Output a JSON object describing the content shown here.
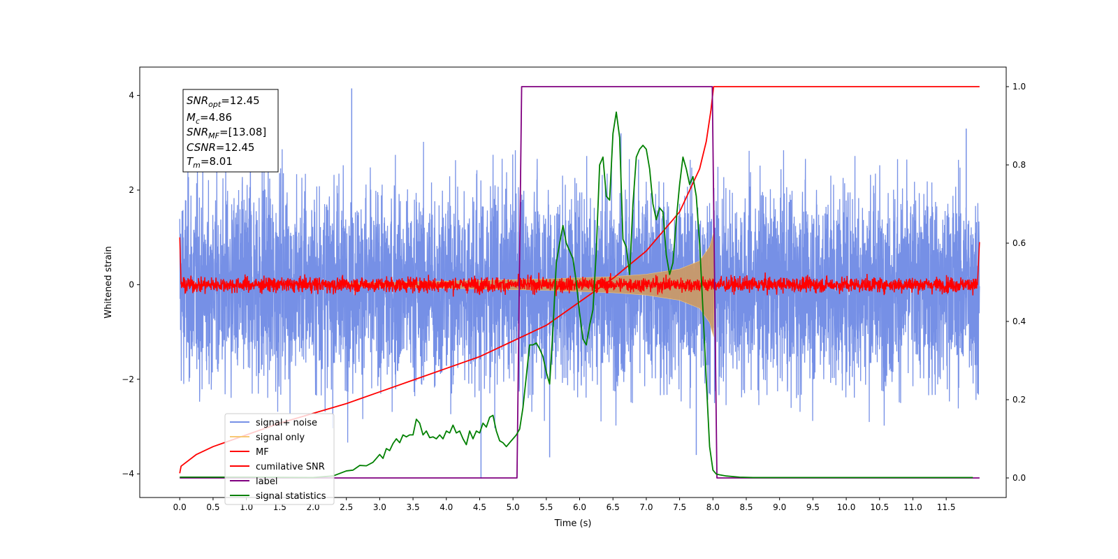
{
  "chart_data": {
    "type": "line",
    "xlabel": "Time (s)",
    "ylabel": "Whitened strain",
    "xlim": [
      -0.6,
      12.4
    ],
    "ylim": [
      -4.5,
      4.6
    ],
    "y2lim": [
      -0.05,
      1.05
    ],
    "x_ticks": [
      0.0,
      0.5,
      1.0,
      1.5,
      2.0,
      2.5,
      3.0,
      3.5,
      4.0,
      4.5,
      5.0,
      5.5,
      6.0,
      6.5,
      7.0,
      7.5,
      8.0,
      8.5,
      9.0,
      9.5,
      10.0,
      10.5,
      11.0,
      11.5
    ],
    "x_tick_labels": [
      "0.0",
      "0.5",
      "1.0",
      "1.5",
      "2.0",
      "2.5",
      "3.0",
      "3.5",
      "4.0",
      "4.5",
      "5.0",
      "5.5",
      "6.0",
      "6.5",
      "7.0",
      "7.5",
      "8.0",
      "8.5",
      "9.0",
      "9.5",
      "10.0",
      "10.5",
      "11.0",
      "11.5"
    ],
    "y_ticks": [
      -4,
      -2,
      0,
      2,
      4
    ],
    "y_tick_labels": [
      "−4",
      "−2",
      "0",
      "2",
      "4"
    ],
    "y2_ticks": [
      0.0,
      0.2,
      0.4,
      0.6,
      0.8,
      1.0
    ],
    "y2_tick_labels": [
      "0.0",
      "0.2",
      "0.4",
      "0.6",
      "0.8",
      "1.0"
    ],
    "grid": false,
    "legend_position": "lower-left",
    "annotation": {
      "position": "top-left",
      "lines": [
        {
          "base": "SNR",
          "sub": "opt",
          "value": "=12.45"
        },
        {
          "base": "M",
          "sub": "c",
          "value": "=4.86"
        },
        {
          "base": "SNR",
          "sub": "MF",
          "value": "=[13.08]"
        },
        {
          "base": "CSNR",
          "sub": "",
          "value": "=12.45"
        },
        {
          "base": "T",
          "sub": "m",
          "value": "=8.01"
        }
      ]
    },
    "series": [
      {
        "name": "signal+ noise",
        "axis": "left",
        "color": "#7690e6",
        "kind": "noise_band",
        "x_range": [
          0.0,
          12.0
        ],
        "std": 0.95,
        "spikes": [
          [
            2.58,
            4.15
          ],
          [
            4.52,
            -4.1
          ],
          [
            1.06,
            2.95
          ],
          [
            5.55,
            -3.65
          ],
          [
            7.75,
            -3.6
          ],
          [
            6.62,
            3.2
          ],
          [
            11.8,
            3.3
          ]
        ],
        "envelope": [
          [
            0.0,
            2.6
          ],
          [
            1.0,
            2.8
          ],
          [
            2.6,
            4.15
          ],
          [
            4.5,
            3.2
          ],
          [
            6.6,
            3.3
          ],
          [
            8.0,
            3.5
          ],
          [
            10.0,
            3.3
          ],
          [
            11.8,
            3.3
          ],
          [
            12.0,
            2.8
          ]
        ]
      },
      {
        "name": "signal only",
        "axis": "left",
        "color": "#f7c873",
        "kind": "chirp_envelope",
        "amplitude_vs_time": [
          [
            2.5,
            0.03
          ],
          [
            3.5,
            0.06
          ],
          [
            4.5,
            0.09
          ],
          [
            5.5,
            0.12
          ],
          [
            6.5,
            0.17
          ],
          [
            7.0,
            0.22
          ],
          [
            7.5,
            0.33
          ],
          [
            7.8,
            0.5
          ],
          [
            7.95,
            0.8
          ],
          [
            8.01,
            1.1
          ],
          [
            8.02,
            0.0
          ]
        ]
      },
      {
        "name": "MF",
        "axis": "left",
        "color": "#ff0000",
        "kind": "matched_filter",
        "x_range": [
          0.0,
          12.0
        ],
        "noise_amplitude": 0.1,
        "edges": [
          [
            0.0,
            1.0
          ],
          [
            0.02,
            0.05
          ],
          [
            11.97,
            0.05
          ],
          [
            12.0,
            0.9
          ]
        ]
      },
      {
        "name": "cumilative SNR",
        "axis": "right",
        "color": "#ff0000",
        "x": [
          0.0,
          0.02,
          0.25,
          0.5,
          1.0,
          1.5,
          2.0,
          2.5,
          3.0,
          3.5,
          4.0,
          4.5,
          5.0,
          5.5,
          6.0,
          6.5,
          7.0,
          7.5,
          7.8,
          7.9,
          7.97,
          8.01,
          8.02,
          12.0
        ],
        "values": [
          0.012,
          0.03,
          0.06,
          0.08,
          0.11,
          0.14,
          0.165,
          0.19,
          0.22,
          0.25,
          0.28,
          0.31,
          0.35,
          0.39,
          0.45,
          0.51,
          0.58,
          0.68,
          0.79,
          0.86,
          0.94,
          1.0,
          1.0,
          1.0
        ]
      },
      {
        "name": "label",
        "axis": "right",
        "color": "#800080",
        "x": [
          0.0,
          5.06,
          5.13,
          7.99,
          8.06,
          12.0
        ],
        "values": [
          0.0,
          0.0,
          1.0,
          1.0,
          0.0,
          0.0
        ]
      },
      {
        "name": "signal statistics",
        "axis": "right",
        "color": "#008000",
        "x": [
          0.0,
          1.0,
          2.0,
          2.3,
          2.5,
          2.6,
          2.7,
          2.8,
          2.9,
          3.0,
          3.05,
          3.1,
          3.15,
          3.2,
          3.25,
          3.3,
          3.35,
          3.4,
          3.45,
          3.5,
          3.55,
          3.6,
          3.65,
          3.7,
          3.75,
          3.8,
          3.85,
          3.9,
          3.95,
          4.0,
          4.05,
          4.1,
          4.15,
          4.2,
          4.25,
          4.3,
          4.35,
          4.4,
          4.45,
          4.5,
          4.55,
          4.6,
          4.65,
          4.7,
          4.75,
          4.8,
          4.85,
          4.9,
          4.95,
          5.0,
          5.05,
          5.1,
          5.15,
          5.2,
          5.25,
          5.3,
          5.35,
          5.4,
          5.45,
          5.5,
          5.55,
          5.6,
          5.65,
          5.7,
          5.75,
          5.8,
          5.85,
          5.9,
          5.95,
          6.0,
          6.05,
          6.1,
          6.15,
          6.2,
          6.25,
          6.3,
          6.35,
          6.4,
          6.45,
          6.5,
          6.55,
          6.6,
          6.65,
          6.7,
          6.75,
          6.8,
          6.85,
          6.9,
          6.95,
          7.0,
          7.05,
          7.1,
          7.15,
          7.2,
          7.25,
          7.3,
          7.35,
          7.4,
          7.45,
          7.5,
          7.55,
          7.6,
          7.65,
          7.7,
          7.75,
          7.8,
          7.85,
          7.9,
          7.95,
          8.0,
          8.05,
          8.1,
          8.2,
          8.4,
          8.6,
          9.0,
          10.0,
          11.0,
          11.9
        ],
        "values": [
          0.002,
          0.002,
          0.001,
          0.005,
          0.018,
          0.02,
          0.032,
          0.031,
          0.04,
          0.06,
          0.05,
          0.075,
          0.07,
          0.088,
          0.1,
          0.09,
          0.11,
          0.105,
          0.11,
          0.11,
          0.15,
          0.14,
          0.11,
          0.12,
          0.103,
          0.105,
          0.1,
          0.11,
          0.1,
          0.12,
          0.115,
          0.135,
          0.115,
          0.12,
          0.1,
          0.085,
          0.12,
          0.1,
          0.12,
          0.115,
          0.14,
          0.13,
          0.155,
          0.16,
          0.12,
          0.095,
          0.09,
          0.08,
          0.09,
          0.1,
          0.11,
          0.125,
          0.18,
          0.26,
          0.34,
          0.34,
          0.345,
          0.33,
          0.31,
          0.27,
          0.24,
          0.38,
          0.55,
          0.6,
          0.645,
          0.6,
          0.58,
          0.56,
          0.5,
          0.42,
          0.355,
          0.34,
          0.39,
          0.43,
          0.58,
          0.8,
          0.82,
          0.72,
          0.71,
          0.88,
          0.935,
          0.87,
          0.61,
          0.59,
          0.52,
          0.7,
          0.82,
          0.84,
          0.85,
          0.84,
          0.79,
          0.7,
          0.66,
          0.69,
          0.68,
          0.57,
          0.52,
          0.55,
          0.66,
          0.75,
          0.82,
          0.79,
          0.75,
          0.77,
          0.72,
          0.6,
          0.43,
          0.25,
          0.08,
          0.02,
          0.01,
          0.008,
          0.005,
          0.002,
          0.001,
          0.001,
          0.001,
          0.001,
          0.001
        ]
      }
    ]
  }
}
